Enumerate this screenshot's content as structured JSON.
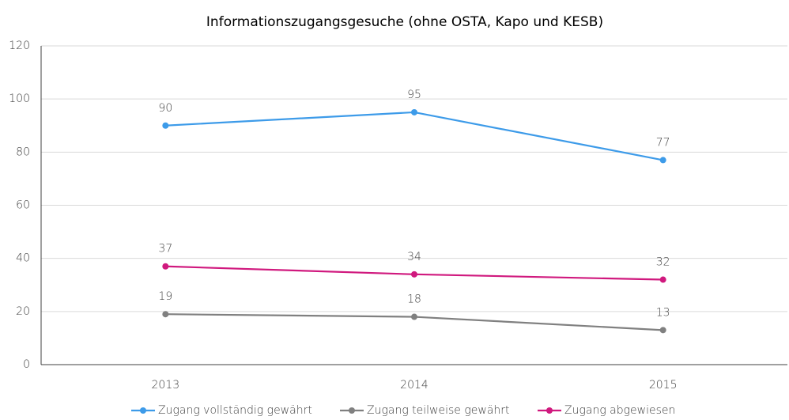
{
  "chart_data": {
    "type": "line",
    "title": "Informationszugangsgesuche (ohne OSTA, Kapo und KESB)",
    "categories": [
      "2013",
      "2014",
      "2015"
    ],
    "series": [
      {
        "name": "Zugang vollständig gewährt",
        "color": "#3d9be9",
        "values": [
          90,
          95,
          77
        ]
      },
      {
        "name": "Zugang teilweise gewährt",
        "color": "#808080",
        "values": [
          19,
          18,
          13
        ]
      },
      {
        "name": "Zugang abgewiesen",
        "color": "#d0197e",
        "values": [
          37,
          34,
          32
        ]
      }
    ],
    "ylim": [
      0,
      120
    ],
    "yticks": [
      0,
      20,
      40,
      60,
      80,
      100,
      120
    ],
    "grid": true,
    "legend": "bottom"
  }
}
